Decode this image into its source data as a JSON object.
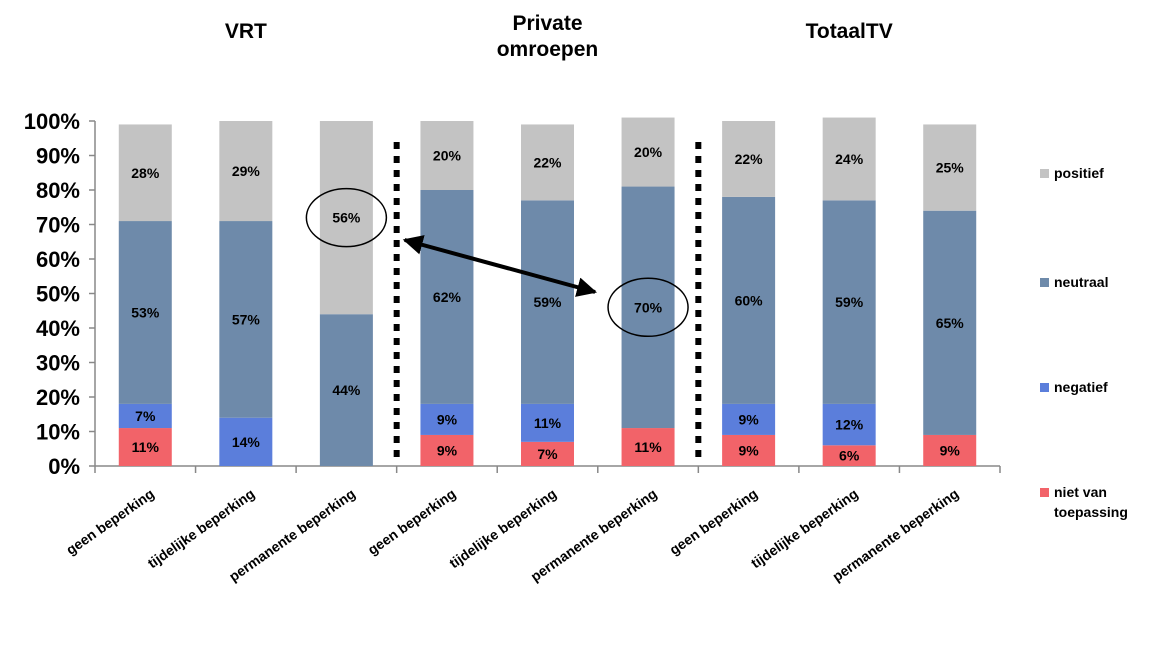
{
  "chart_data": {
    "type": "bar",
    "stacked": true,
    "percent": true,
    "group_labels": [
      "VRT",
      "Private omroepen",
      "TotaalTV"
    ],
    "categories": [
      "geen beperking",
      "tijdelijke beperking",
      "permanente beperking",
      "geen beperking",
      "tijdelijke beperking",
      "permanente beperking",
      "geen beperking",
      "tijdelijke beperking",
      "permanente beperking"
    ],
    "series": [
      {
        "name": "niet van toepassing",
        "color": "#F26369",
        "values": [
          11,
          0,
          0,
          9,
          7,
          11,
          9,
          6,
          9
        ],
        "labels": [
          "11%",
          "",
          "",
          "9%",
          "7%",
          "11%",
          "9%",
          "6%",
          "9%"
        ]
      },
      {
        "name": "negatief",
        "color": "#5B7EDB",
        "values": [
          7,
          14,
          0,
          9,
          11,
          0,
          9,
          12,
          0
        ],
        "labels": [
          "7%",
          "14%",
          "",
          "9%",
          "11%",
          "",
          "9%",
          "12%",
          ""
        ]
      },
      {
        "name": "neutraal",
        "color": "#6E8AAA",
        "values": [
          53,
          57,
          44,
          62,
          59,
          70,
          60,
          59,
          65
        ],
        "labels": [
          "53%",
          "57%",
          "44%",
          "62%",
          "59%",
          "70%",
          "60%",
          "59%",
          "65%"
        ]
      },
      {
        "name": "positief",
        "color": "#C3C3C3",
        "values": [
          28,
          29,
          56,
          20,
          22,
          20,
          22,
          24,
          25
        ],
        "labels": [
          "28%",
          "29%",
          "56%",
          "20%",
          "22%",
          "20%",
          "22%",
          "24%",
          "25%"
        ]
      }
    ],
    "y_ticks": [
      "0%",
      "10%",
      "20%",
      "30%",
      "40%",
      "50%",
      "60%",
      "70%",
      "80%",
      "90%",
      "100%"
    ],
    "ylim": [
      0,
      100
    ],
    "grid": false,
    "legend": [
      "positief",
      "neutraal",
      "negatief",
      "niet van toepassing"
    ],
    "legend_position": "right",
    "highlights": [
      {
        "category_index": 2,
        "series": "positief",
        "shape": "ellipse"
      },
      {
        "category_index": 5,
        "series": "neutraal",
        "shape": "ellipse"
      }
    ],
    "annotation_arrow": {
      "from_category_index": 2,
      "to_category_index": 5,
      "double_headed": true
    },
    "separators_after_category_index": [
      2,
      5
    ],
    "separator_style": "dotted"
  }
}
